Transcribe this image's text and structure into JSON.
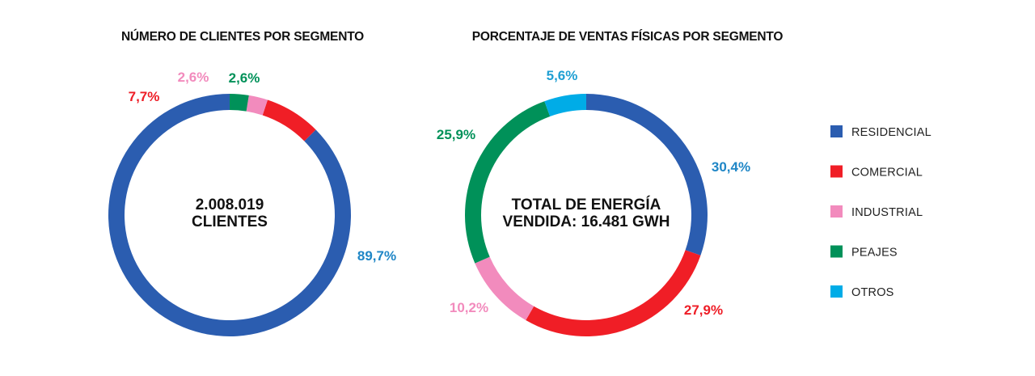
{
  "colors": {
    "residencial": "#2b5db0",
    "comercial": "#f01e26",
    "industrial": "#f28bbd",
    "peajes": "#009159",
    "otros": "#00ace7"
  },
  "label_colors": {
    "residencial": "#1f86c6",
    "comercial": "#ee1d26",
    "industrial": "#f28bbd",
    "peajes": "#009159",
    "otros": "#1f9fd3"
  },
  "legend": [
    {
      "key": "residencial",
      "label": "RESIDENCIAL"
    },
    {
      "key": "comercial",
      "label": "COMERCIAL"
    },
    {
      "key": "industrial",
      "label": "INDUSTRIAL"
    },
    {
      "key": "peajes",
      "label": "PEAJES"
    },
    {
      "key": "otros",
      "label": "OTROS"
    }
  ],
  "chart_data": [
    {
      "type": "pie",
      "donut": true,
      "title": "NÚMERO DE CLIENTES POR SEGMENTO",
      "center_lines": [
        "2.008.019",
        "CLIENTES"
      ],
      "slices": [
        {
          "key": "residencial",
          "value": 89.7,
          "label": "89,7%"
        },
        {
          "key": "comercial",
          "value": 7.7,
          "label": "7,7%"
        },
        {
          "key": "industrial",
          "value": 2.6,
          "label": "2,6%"
        },
        {
          "key": "peajes",
          "value": 2.6,
          "label": "2,6%"
        }
      ]
    },
    {
      "type": "pie",
      "donut": true,
      "title": "PORCENTAJE DE VENTAS FÍSICAS POR SEGMENTO",
      "center_lines": [
        "TOTAL DE ENERGÍA",
        "VENDIDA: 16.481 GWH"
      ],
      "slices": [
        {
          "key": "residencial",
          "value": 30.4,
          "label": "30,4%"
        },
        {
          "key": "comercial",
          "value": 27.9,
          "label": "27,9%"
        },
        {
          "key": "industrial",
          "value": 10.2,
          "label": "10,2%"
        },
        {
          "key": "peajes",
          "value": 25.9,
          "label": "25,9%"
        },
        {
          "key": "otros",
          "value": 5.6,
          "label": "5,6%"
        }
      ]
    }
  ]
}
